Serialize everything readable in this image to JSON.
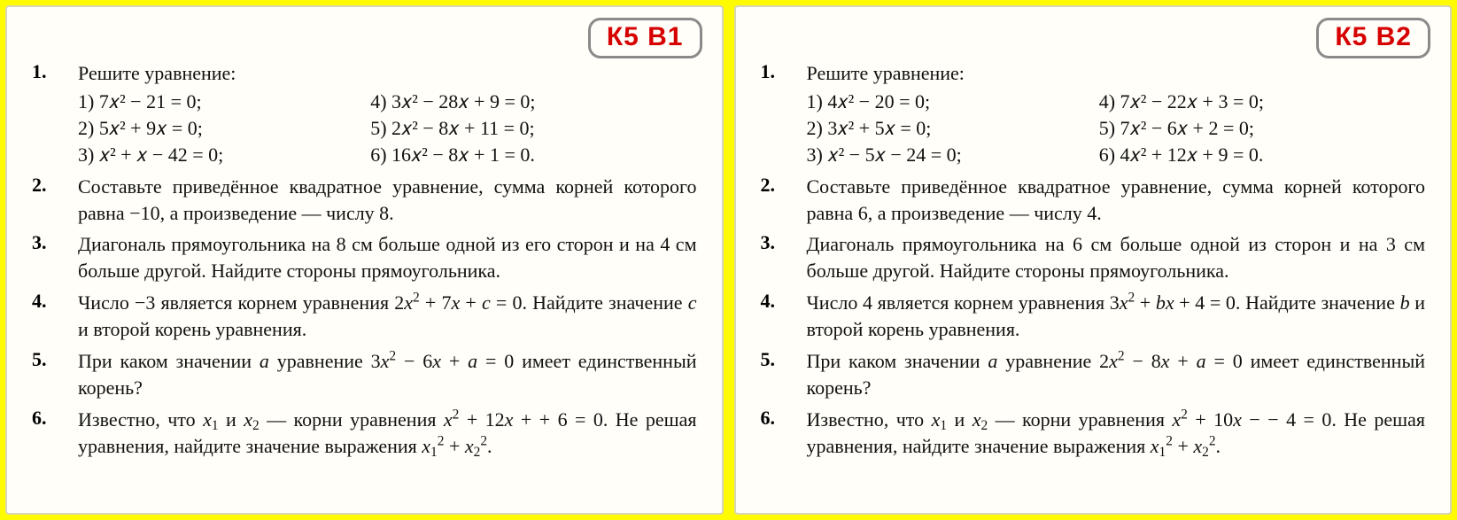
{
  "page": {
    "background_color": "#fffb00",
    "card_background": "#fffef8",
    "card_border_color": "#d8d4b8",
    "badge_border_color": "#8a8a8a",
    "badge_text_color": "#d60000",
    "font_family": "Times New Roman",
    "body_fontsize": 22,
    "badge_fontsize": 30
  },
  "cards": [
    {
      "badge": "К5 В1",
      "tasks": [
        {
          "num": "1.",
          "type": "equations",
          "intro": "Решите уравнение:",
          "left": [
            "1) 7𝑥² − 21 = 0;",
            "2) 5𝑥² + 9𝑥 = 0;",
            "3)  𝑥² + 𝑥 − 42 = 0;"
          ],
          "right": [
            "4) 3𝑥² − 28𝑥 + 9 = 0;",
            "5) 2𝑥² − 8𝑥 + 11 = 0;",
            "6) 16𝑥² − 8𝑥 + 1 = 0."
          ]
        },
        {
          "num": "2.",
          "type": "text",
          "text": "Составьте приведённое квадратное уравнение, сумма корней которого равна −10, а произведение — числу 8."
        },
        {
          "num": "3.",
          "type": "text",
          "text": "Диагональ прямоугольника на 8 см больше одной из его сторон и на 4 см больше другой. Найдите стороны прямоугольника."
        },
        {
          "num": "4.",
          "type": "html",
          "html": "Число −3 является корнем уравнения  2<span class='it'>x</span><sup>2</sup> + 7<span class='it'>x</span> + <span class='it'>c</span> = 0. Найдите значение <span class='it'>c</span> и второй корень уравнения."
        },
        {
          "num": "5.",
          "type": "html",
          "html": "При каком значении <span class='it'>a</span> уравнение  3<span class='it'>x</span><sup>2</sup> − 6<span class='it'>x</span> + <span class='it'>a</span> = 0  имеет единственный корень?"
        },
        {
          "num": "6.",
          "type": "html",
          "html": "Известно, что  <span class='it'>x</span><sub>1</sub>  и  <span class='it'>x</span><sub>2</sub>  — корни уравнения  <span class='it'>x</span><sup>2</sup> + 12<span class='it'>x</span> + + 6 = 0. Не решая уравнения, найдите значение выражения  <span class='it'>x</span><sub>1</sub><sup>2</sup> + <span class='it'>x</span><sub>2</sub><sup>2</sup>."
        }
      ]
    },
    {
      "badge": "К5 В2",
      "tasks": [
        {
          "num": "1.",
          "type": "equations",
          "intro": "Решите уравнение:",
          "left": [
            "1) 4𝑥² − 20 = 0;",
            "2) 3𝑥² + 5𝑥 = 0;",
            "3)  𝑥² − 5𝑥 − 24 = 0;"
          ],
          "right": [
            "4) 7𝑥² − 22𝑥 + 3 = 0;",
            "5) 7𝑥² − 6𝑥 + 2 = 0;",
            "6) 4𝑥² + 12𝑥 + 9 = 0."
          ]
        },
        {
          "num": "2.",
          "type": "text",
          "text": "Составьте приведённое квадратное уравнение, сумма корней которого равна 6, а произведение — числу 4."
        },
        {
          "num": "3.",
          "type": "text",
          "text": "Диагональ прямоугольника на 6 см больше одной из сторон и на 3 см больше другой. Найдите стороны прямоугольника."
        },
        {
          "num": "4.",
          "type": "html",
          "html": "Число 4 является корнем уравнения  3<span class='it'>x</span><sup>2</sup> + <span class='it'>bx</span> + 4 = 0. Найдите значение <span class='it'>b</span> и второй корень уравнения."
        },
        {
          "num": "5.",
          "type": "html",
          "html": "При каком значении <span class='it'>a</span> уравнение  2<span class='it'>x</span><sup>2</sup> − 8<span class='it'>x</span> + <span class='it'>a</span> = 0  имеет единственный корень?"
        },
        {
          "num": "6.",
          "type": "html",
          "html": "Известно, что  <span class='it'>x</span><sub>1</sub>  и  <span class='it'>x</span><sub>2</sub>  — корни уравнения  <span class='it'>x</span><sup>2</sup> + 10<span class='it'>x</span> − − 4 = 0. Не решая уравнения, найдите значение выражения  <span class='it'>x</span><sub>1</sub><sup>2</sup> + <span class='it'>x</span><sub>2</sub><sup>2</sup>."
        }
      ]
    }
  ]
}
